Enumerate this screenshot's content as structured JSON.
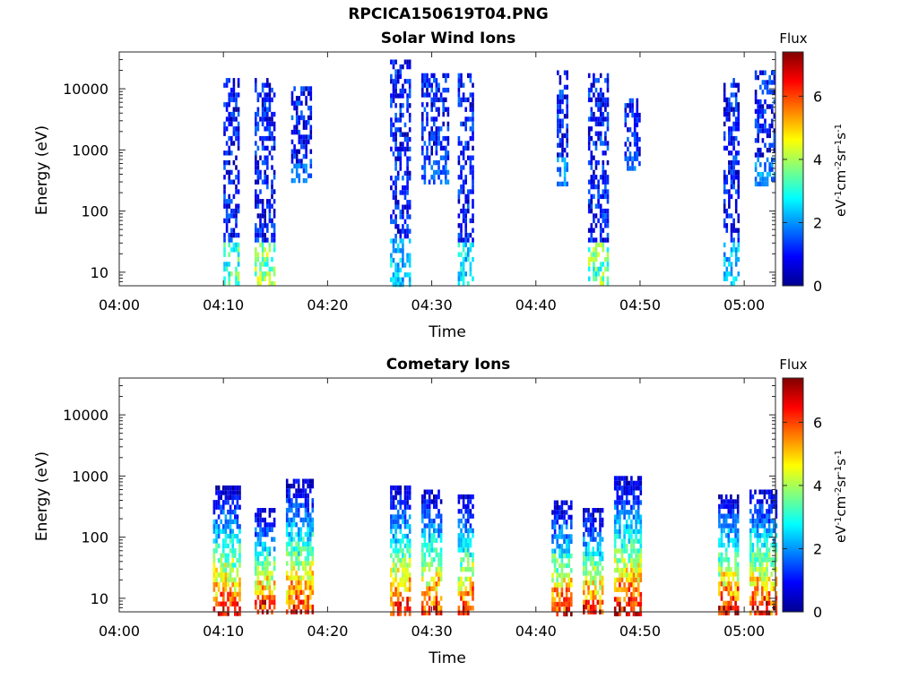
{
  "figure_title": "RPCICA150619T04.PNG",
  "chart_data": [
    {
      "type": "heatmap",
      "title": "Solar Wind Ions",
      "xlabel": "Time",
      "ylabel": "Energy (eV)",
      "xlim": [
        "04:00",
        "05:03"
      ],
      "x_ticks": [
        "04:00",
        "04:10",
        "04:20",
        "04:30",
        "04:40",
        "04:50",
        "05:00"
      ],
      "ylim": [
        6,
        40000
      ],
      "yscale": "log",
      "y_ticks": [
        10,
        100,
        1000,
        10000
      ],
      "y_tick_labels": [
        "10",
        "100",
        "1000",
        "10000"
      ],
      "colorbar": {
        "title": "Flux",
        "label": "eV⁻¹cm⁻²sr⁻¹s⁻¹",
        "range": [
          0,
          7.4
        ],
        "ticks": [
          0,
          2,
          4,
          6
        ],
        "colormap": "jet"
      },
      "bursts": [
        {
          "start": "04:10",
          "end": "04:11.5",
          "e_min": 6,
          "e_max": 15000,
          "peak_flux": 4.2
        },
        {
          "start": "04:13",
          "end": "04:14.8",
          "e_min": 6,
          "e_max": 15000,
          "peak_flux": 4.8
        },
        {
          "start": "04:16.5",
          "end": "04:18.5",
          "e_min": 300,
          "e_max": 11000,
          "peak_flux": 2.2
        },
        {
          "start": "04:26",
          "end": "04:28",
          "e_min": 6,
          "e_max": 30000,
          "peak_flux": 3.0
        },
        {
          "start": "04:29",
          "end": "04:31.5",
          "e_min": 300,
          "e_max": 18000,
          "peak_flux": 2.0
        },
        {
          "start": "04:32.5",
          "end": "04:34",
          "e_min": 6,
          "e_max": 18000,
          "peak_flux": 3.2
        },
        {
          "start": "04:42",
          "end": "04:43",
          "e_min": 300,
          "e_max": 20000,
          "peak_flux": 2.5
        },
        {
          "start": "04:45",
          "end": "04:47",
          "e_min": 6,
          "e_max": 18000,
          "peak_flux": 4.5
        },
        {
          "start": "04:48.5",
          "end": "04:50",
          "e_min": 500,
          "e_max": 7000,
          "peak_flux": 2.2
        },
        {
          "start": "04:58",
          "end": "04:59.5",
          "e_min": 6,
          "e_max": 15000,
          "peak_flux": 3.0
        },
        {
          "start": "05:01",
          "end": "05:03",
          "e_min": 300,
          "e_max": 20000,
          "peak_flux": 2.5
        }
      ]
    },
    {
      "type": "heatmap",
      "title": "Cometary Ions",
      "xlabel": "Time",
      "ylabel": "Energy (eV)",
      "xlim": [
        "04:00",
        "05:03"
      ],
      "x_ticks": [
        "04:00",
        "04:10",
        "04:20",
        "04:30",
        "04:40",
        "04:50",
        "05:00"
      ],
      "ylim": [
        6,
        40000
      ],
      "yscale": "log",
      "y_ticks": [
        10,
        100,
        1000,
        10000
      ],
      "y_tick_labels": [
        "10",
        "100",
        "1000",
        "10000"
      ],
      "colorbar": {
        "title": "Flux",
        "label": "eV⁻¹cm⁻²sr⁻¹s⁻¹",
        "range": [
          0,
          7.4
        ],
        "ticks": [
          0,
          2,
          4,
          6
        ],
        "colormap": "jet"
      },
      "bursts": [
        {
          "start": "04:09",
          "end": "04:11.5",
          "e_min": 6,
          "e_max": 700,
          "peak_flux": 7.0
        },
        {
          "start": "04:13",
          "end": "04:15",
          "e_min": 6,
          "e_max": 300,
          "peak_flux": 7.2
        },
        {
          "start": "04:16",
          "end": "04:18.5",
          "e_min": 6,
          "e_max": 900,
          "peak_flux": 7.0
        },
        {
          "start": "04:26",
          "end": "04:28",
          "e_min": 6,
          "e_max": 700,
          "peak_flux": 7.2
        },
        {
          "start": "04:29",
          "end": "04:31",
          "e_min": 6,
          "e_max": 600,
          "peak_flux": 7.0
        },
        {
          "start": "04:32.5",
          "end": "04:34",
          "e_min": 6,
          "e_max": 500,
          "peak_flux": 7.0
        },
        {
          "start": "04:41.5",
          "end": "04:43.5",
          "e_min": 6,
          "e_max": 400,
          "peak_flux": 7.0
        },
        {
          "start": "04:44.5",
          "end": "04:46.5",
          "e_min": 6,
          "e_max": 300,
          "peak_flux": 7.0
        },
        {
          "start": "04:47.5",
          "end": "04:50",
          "e_min": 6,
          "e_max": 1000,
          "peak_flux": 7.3
        },
        {
          "start": "04:57.5",
          "end": "04:59.5",
          "e_min": 6,
          "e_max": 500,
          "peak_flux": 7.2
        },
        {
          "start": "05:00.5",
          "end": "05:03",
          "e_min": 6,
          "e_max": 600,
          "peak_flux": 7.2
        }
      ]
    }
  ]
}
